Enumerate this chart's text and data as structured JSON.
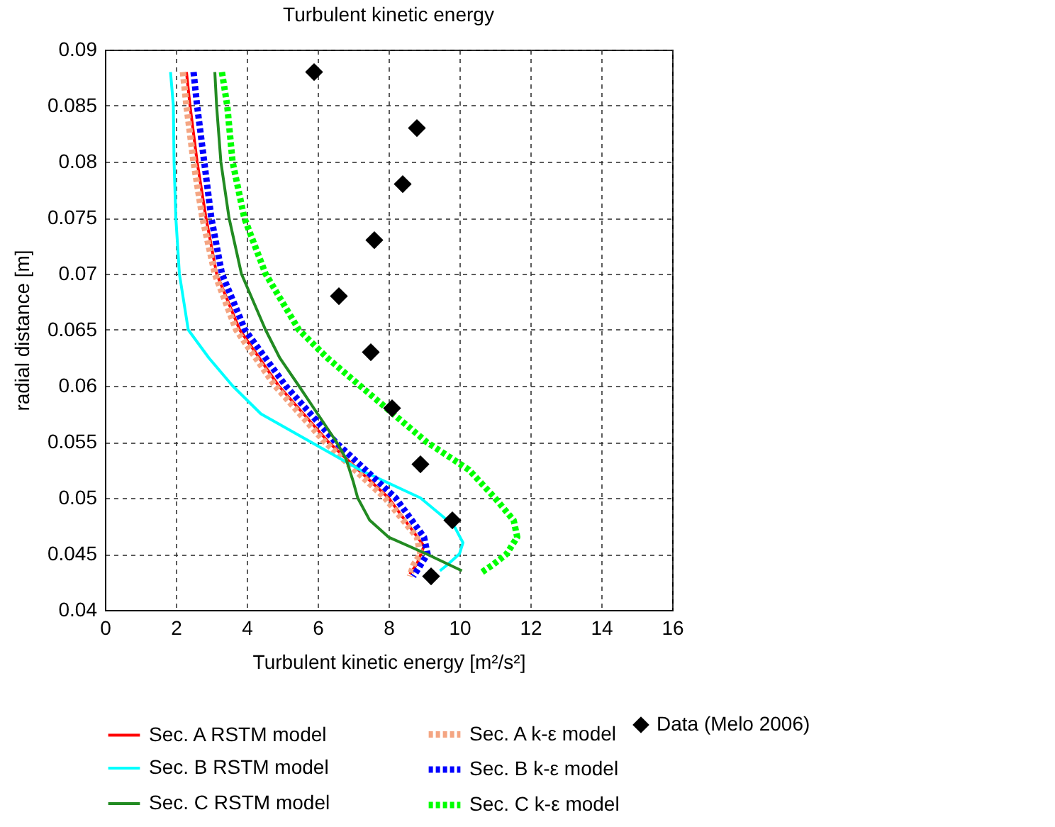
{
  "chart_data": {
    "type": "line",
    "title": "Turbulent kinetic energy",
    "xlabel": "Turbulent kinetic energy [m²/s²]",
    "ylabel": "radial distance [m]",
    "xlim": [
      0,
      16
    ],
    "xticks": [
      0,
      2,
      4,
      6,
      8,
      10,
      12,
      14,
      16
    ],
    "ylim": [
      0.04,
      0.09
    ],
    "yticks": [
      0.04,
      0.045,
      0.05,
      0.055,
      0.06,
      0.065,
      0.07,
      0.075,
      0.08,
      0.085,
      0.09
    ],
    "grid": true,
    "legend": "bottom",
    "series": [
      {
        "name": "Sec. A RSTM model",
        "type": "line",
        "line_style": "solid",
        "color": "#ff0000",
        "x": [
          2.3,
          2.4,
          2.6,
          2.85,
          3.15,
          3.8,
          4.9,
          6.3,
          8.0,
          9.0,
          8.8,
          8.6
        ],
        "values": [
          0.088,
          0.085,
          0.08,
          0.075,
          0.07,
          0.065,
          0.06,
          0.055,
          0.05,
          0.0457,
          0.0441,
          0.0432
        ]
      },
      {
        "name": "Sec. A k-ε model",
        "type": "line",
        "line_style": "dotted",
        "color": "#f4a582",
        "x": [
          2.2,
          2.3,
          2.5,
          2.75,
          3.1,
          3.7,
          4.8,
          6.2,
          7.9,
          8.8,
          8.9,
          8.7,
          8.6
        ],
        "values": [
          0.088,
          0.085,
          0.08,
          0.075,
          0.07,
          0.065,
          0.06,
          0.055,
          0.05,
          0.0465,
          0.045,
          0.044,
          0.043
        ]
      },
      {
        "name": "Sec. B RSTM model",
        "type": "line",
        "line_style": "solid",
        "color": "#00ffff",
        "x": [
          1.85,
          1.93,
          1.95,
          2.0,
          2.1,
          2.35,
          2.93,
          3.6,
          4.4,
          5.8,
          7.2,
          8.9,
          9.85,
          10.1,
          10.0,
          9.65,
          9.45
        ],
        "values": [
          0.088,
          0.085,
          0.08,
          0.075,
          0.07,
          0.065,
          0.0625,
          0.06,
          0.0575,
          0.055,
          0.0525,
          0.05,
          0.0475,
          0.046,
          0.045,
          0.044,
          0.0435
        ]
      },
      {
        "name": "Sec. B k-ε model",
        "type": "line",
        "line_style": "dotted",
        "color": "#0000ff",
        "x": [
          2.5,
          2.6,
          2.8,
          3.0,
          3.3,
          3.95,
          5.1,
          6.5,
          8.2,
          9.0,
          9.1,
          8.9,
          8.7
        ],
        "values": [
          0.088,
          0.085,
          0.08,
          0.075,
          0.07,
          0.065,
          0.06,
          0.055,
          0.05,
          0.0465,
          0.045,
          0.044,
          0.043
        ]
      },
      {
        "name": "Sec. C RSTM model",
        "type": "line",
        "line_style": "solid",
        "color": "#228b22",
        "x": [
          3.1,
          3.15,
          3.27,
          3.5,
          3.85,
          4.53,
          4.93,
          5.47,
          6.0,
          6.53,
          6.8,
          7.0,
          7.13,
          7.47,
          8.0,
          9.07,
          10.07
        ],
        "values": [
          0.088,
          0.085,
          0.08,
          0.075,
          0.07,
          0.065,
          0.0625,
          0.06,
          0.0575,
          0.055,
          0.0535,
          0.0515,
          0.05,
          0.048,
          0.0465,
          0.045,
          0.0435
        ]
      },
      {
        "name": "Sec. C k-ε model",
        "type": "line",
        "line_style": "dotted",
        "color": "#00ff00",
        "x": [
          3.3,
          3.45,
          3.6,
          3.93,
          4.53,
          5.47,
          6.27,
          7.2,
          8.13,
          9.07,
          10.27,
          11.0,
          11.53,
          11.63,
          11.33,
          10.93,
          10.6
        ],
        "values": [
          0.088,
          0.085,
          0.08,
          0.075,
          0.07,
          0.065,
          0.0625,
          0.06,
          0.0575,
          0.055,
          0.0525,
          0.05,
          0.048,
          0.0465,
          0.045,
          0.044,
          0.0433
        ]
      },
      {
        "name": "Data (Melo 2006)",
        "type": "scatter",
        "marker": "diamond",
        "color": "#000000",
        "x": [
          5.9,
          8.8,
          8.4,
          7.6,
          6.6,
          7.5,
          8.1,
          8.9,
          9.8,
          9.2
        ],
        "values": [
          0.088,
          0.083,
          0.078,
          0.073,
          0.068,
          0.063,
          0.058,
          0.053,
          0.048,
          0.043
        ]
      }
    ]
  }
}
